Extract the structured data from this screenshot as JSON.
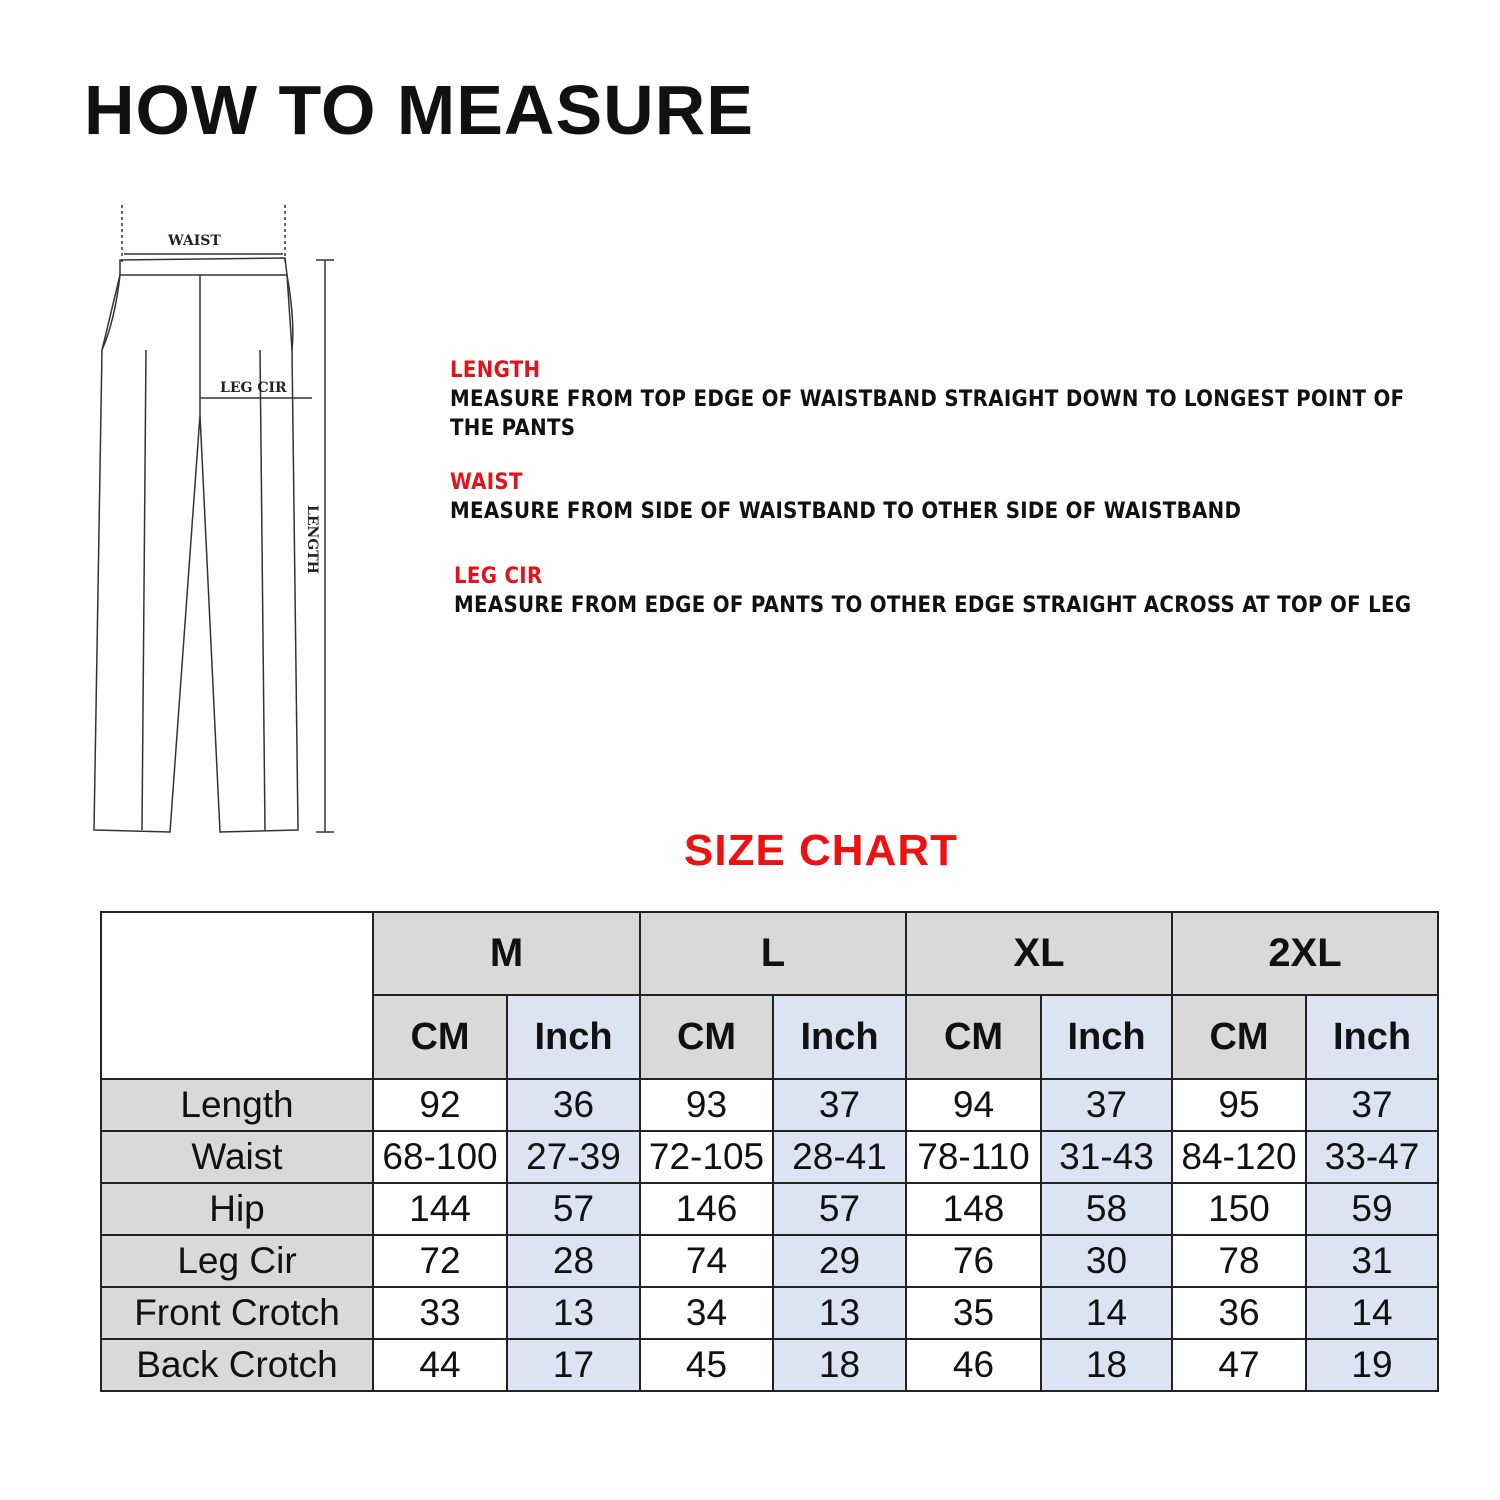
{
  "title": "HOW TO MEASURE",
  "diagram": {
    "waist": "WAIST",
    "leg_cir": "LEG CIR",
    "length": "LENGTH"
  },
  "instructions": [
    {
      "heading": "LENGTH",
      "text": "MEASURE FROM TOP EDGE OF WAISTBAND STRAIGHT DOWN TO LONGEST POINT OF THE PANTS"
    },
    {
      "heading": "WAIST",
      "text": "MEASURE FROM SIDE OF WAISTBAND TO OTHER SIDE OF WAISTBAND"
    },
    {
      "heading": "LEG CIR",
      "text": "MEASURE FROM EDGE OF PANTS TO OTHER EDGE STRAIGHT ACROSS AT TOP OF LEG"
    }
  ],
  "size_chart": {
    "title": "SIZE CHART",
    "sizes": [
      "M",
      "L",
      "XL",
      "2XL"
    ],
    "units": [
      "CM",
      "Inch"
    ],
    "rows": [
      {
        "label": "Length",
        "values": [
          "92",
          "36",
          "93",
          "37",
          "94",
          "37",
          "95",
          "37"
        ]
      },
      {
        "label": "Waist",
        "values": [
          "68-100",
          "27-39",
          "72-105",
          "28-41",
          "78-110",
          "31-43",
          "84-120",
          "33-47"
        ]
      },
      {
        "label": "Hip",
        "values": [
          "144",
          "57",
          "146",
          "57",
          "148",
          "58",
          "150",
          "59"
        ]
      },
      {
        "label": "Leg Cir",
        "values": [
          "72",
          "28",
          "74",
          "29",
          "76",
          "30",
          "78",
          "31"
        ]
      },
      {
        "label": "Front Crotch",
        "values": [
          "33",
          "13",
          "34",
          "13",
          "35",
          "14",
          "36",
          "14"
        ]
      },
      {
        "label": "Back Crotch",
        "values": [
          "44",
          "17",
          "45",
          "18",
          "46",
          "18",
          "47",
          "19"
        ]
      }
    ]
  },
  "colors": {
    "accent": "#e0141a",
    "header_gray": "#d9d9d9",
    "inch_blue": "#dce3f3"
  }
}
